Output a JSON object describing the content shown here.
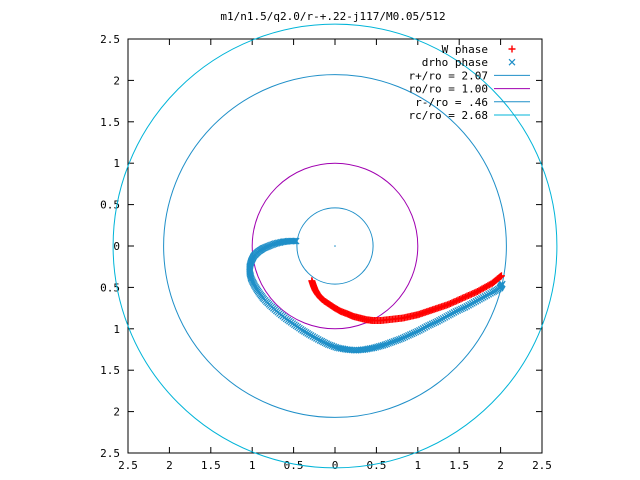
{
  "chart_data": {
    "type": "scatter",
    "title": "m1/n1.5/q2.0/r-+.22-j117/M0.05/512",
    "xlim": [
      -2.5,
      2.5
    ],
    "ylim": [
      -2.5,
      2.5
    ],
    "x_ticks": [
      -2.5,
      -2,
      -1.5,
      -1,
      -0.5,
      0,
      0.5,
      1,
      1.5,
      2,
      2.5
    ],
    "y_ticks": [
      2.5,
      2,
      1.5,
      1,
      0.5,
      0,
      -0.5,
      -1,
      -1.5,
      -2,
      -2.5
    ],
    "x_tick_labels": [
      "2.5",
      "2",
      "1.5",
      "1",
      "0.5",
      "0",
      "0.5",
      "1",
      "1.5",
      "2",
      "2.5"
    ],
    "y_tick_labels": [
      "2.5",
      "2",
      "1.5",
      "1",
      "0.5",
      "0",
      "0.5",
      "1",
      "1.5",
      "2",
      "2.5"
    ],
    "grid": false,
    "legend_position": "top-right",
    "center_point": {
      "x": 0,
      "y": 0
    },
    "circles": [
      {
        "name": "r+/ro = 2.07",
        "radius": 2.07,
        "color": "#1f8fc8"
      },
      {
        "name": "ro/ro = 1.00",
        "radius": 1.0,
        "color": "#a000b0"
      },
      {
        "name": "r-/ro = .46",
        "radius": 0.46,
        "color": "#1f8fc8"
      },
      {
        "name": "rc/ro = 2.68",
        "radius": 2.68,
        "color": "#00b4d8"
      }
    ],
    "series": [
      {
        "name": "W phase",
        "marker": "plus",
        "color": "#ff0000",
        "points": [
          [
            -0.28,
            -0.42
          ],
          [
            -0.26,
            -0.48
          ],
          [
            -0.24,
            -0.53
          ],
          [
            -0.21,
            -0.58
          ],
          [
            -0.17,
            -0.63
          ],
          [
            -0.12,
            -0.67
          ],
          [
            -0.06,
            -0.71
          ],
          [
            0.0,
            -0.75
          ],
          [
            0.07,
            -0.79
          ],
          [
            0.15,
            -0.82
          ],
          [
            0.22,
            -0.85
          ],
          [
            0.3,
            -0.87
          ],
          [
            0.38,
            -0.89
          ],
          [
            0.46,
            -0.9
          ],
          [
            0.55,
            -0.9
          ],
          [
            0.64,
            -0.89
          ],
          [
            0.73,
            -0.88
          ],
          [
            0.82,
            -0.87
          ],
          [
            0.91,
            -0.85
          ],
          [
            1.0,
            -0.83
          ],
          [
            1.09,
            -0.8
          ],
          [
            1.18,
            -0.77
          ],
          [
            1.27,
            -0.74
          ],
          [
            1.36,
            -0.71
          ],
          [
            1.45,
            -0.67
          ],
          [
            1.54,
            -0.63
          ],
          [
            1.63,
            -0.59
          ],
          [
            1.72,
            -0.55
          ],
          [
            1.81,
            -0.5
          ],
          [
            1.9,
            -0.45
          ],
          [
            1.96,
            -0.4
          ],
          [
            2.01,
            -0.36
          ]
        ]
      },
      {
        "name": "drho phase",
        "marker": "cross",
        "color": "#1f8fc8",
        "points": [
          [
            -0.47,
            0.06
          ],
          [
            -0.55,
            0.06
          ],
          [
            -0.63,
            0.05
          ],
          [
            -0.72,
            0.03
          ],
          [
            -0.8,
            0.0
          ],
          [
            -0.87,
            -0.03
          ],
          [
            -0.93,
            -0.07
          ],
          [
            -0.98,
            -0.12
          ],
          [
            -1.01,
            -0.18
          ],
          [
            -1.03,
            -0.25
          ],
          [
            -1.03,
            -0.32
          ],
          [
            -1.01,
            -0.4
          ],
          [
            -0.97,
            -0.48
          ],
          [
            -0.92,
            -0.56
          ],
          [
            -0.86,
            -0.64
          ],
          [
            -0.78,
            -0.72
          ],
          [
            -0.69,
            -0.8
          ],
          [
            -0.59,
            -0.88
          ],
          [
            -0.49,
            -0.95
          ],
          [
            -0.39,
            -1.02
          ],
          [
            -0.29,
            -1.08
          ],
          [
            -0.18,
            -1.14
          ],
          [
            -0.08,
            -1.19
          ],
          [
            0.03,
            -1.23
          ],
          [
            0.14,
            -1.25
          ],
          [
            0.25,
            -1.26
          ],
          [
            0.36,
            -1.25
          ],
          [
            0.47,
            -1.23
          ],
          [
            0.58,
            -1.2
          ],
          [
            0.69,
            -1.16
          ],
          [
            0.8,
            -1.12
          ],
          [
            0.91,
            -1.07
          ],
          [
            1.02,
            -1.02
          ],
          [
            1.13,
            -0.96
          ],
          [
            1.24,
            -0.91
          ],
          [
            1.35,
            -0.85
          ],
          [
            1.46,
            -0.79
          ],
          [
            1.57,
            -0.74
          ],
          [
            1.68,
            -0.68
          ],
          [
            1.79,
            -0.62
          ],
          [
            1.9,
            -0.56
          ],
          [
            1.99,
            -0.51
          ],
          [
            2.02,
            -0.46
          ]
        ]
      }
    ]
  },
  "colors": {
    "w_phase": "#ff0000",
    "drho_phase": "#1f8fc8",
    "ro_circle": "#a000b0",
    "rc_circle": "#00b4d8",
    "axes": "#000000"
  }
}
